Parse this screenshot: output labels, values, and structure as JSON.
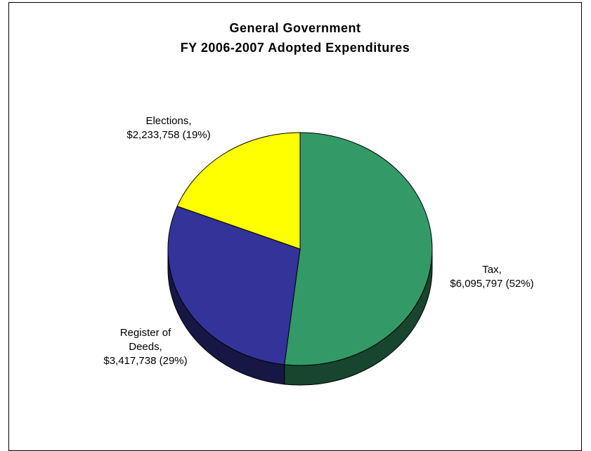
{
  "chart_data": {
    "type": "pie",
    "title_lines": [
      "General Government",
      "FY 2006-2007 Adopted Expenditures"
    ],
    "slices": [
      {
        "name": "Tax",
        "value": 6095797,
        "percent": 52,
        "color": "#339966",
        "label_lines": [
          "Tax,",
          "$6,095,797 (52%)"
        ]
      },
      {
        "name": "Register of Deeds",
        "value": 3417738,
        "percent": 29,
        "color": "#333399",
        "label_lines": [
          "Register of",
          "Deeds,",
          "$3,417,738 (29%)"
        ]
      },
      {
        "name": "Elections",
        "value": 2233758,
        "percent": 19,
        "color": "#ffff00",
        "label_lines": [
          "Elections,",
          "$2,233,758 (19%)"
        ]
      }
    ],
    "style": "3d-pie"
  }
}
